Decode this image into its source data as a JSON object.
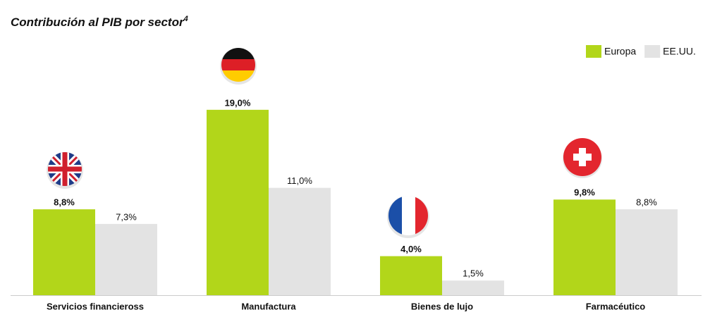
{
  "chart_data": {
    "type": "bar",
    "title": "Contribución al PIB por sector",
    "title_superscript": "4",
    "categories": [
      "Servicios financieross",
      "Manufactura",
      "Bienes de lujo",
      "Farmacéutico"
    ],
    "series": [
      {
        "name": "Europa",
        "color": "#b2d61a",
        "values": [
          8.8,
          19.0,
          4.0,
          9.8
        ],
        "value_labels": [
          "8,8%",
          "19,0%",
          "4,0%",
          "9,8%"
        ]
      },
      {
        "name": "EE.UU.",
        "color": "#e3e3e3",
        "values": [
          7.3,
          11.0,
          1.5,
          8.8
        ],
        "value_labels": [
          "7,3%",
          "11,0%",
          "1,5%",
          "8,8%"
        ]
      }
    ],
    "ylim": [
      0,
      20
    ],
    "grid": false,
    "legend": "top-right"
  }
}
